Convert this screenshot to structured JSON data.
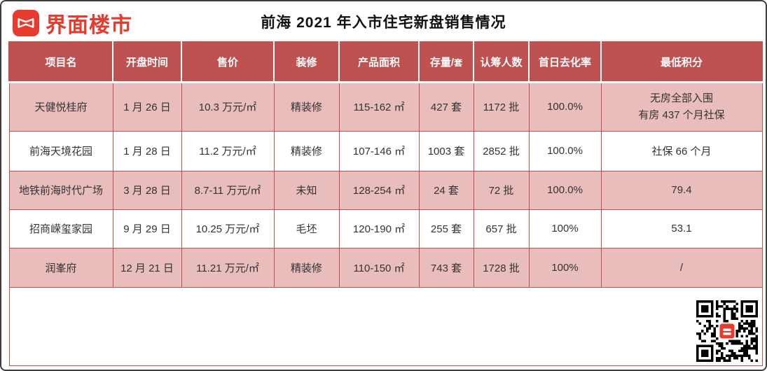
{
  "brand": {
    "name": "界面楼市",
    "logo_color": "#e63c2f"
  },
  "title": "前海 2021 年入市住宅新盘销售情况",
  "colors": {
    "header_bg": "#bf5150",
    "row_pink": "#e8bdbc",
    "grid_red": "#c0504d",
    "brand_red": "#e63c2f"
  },
  "header_stock": {
    "prefix": "存量/",
    "unit": "套"
  },
  "chart_data": {
    "type": "table",
    "title": "前海 2021 年入市住宅新盘销售情况",
    "columns": [
      "项目名",
      "开盘时间",
      "售价",
      "装修",
      "产品面积",
      "存量/套",
      "认筹人数",
      "首日去化率",
      "最低积分"
    ],
    "rows": [
      [
        "天健悦桂府",
        "1 月 26 日",
        "10.3 万元/㎡",
        "精装修",
        "115-162 ㎡",
        "427 套",
        "1172 批",
        "100.0%",
        "无房全部入围\n有房 437 个月社保"
      ],
      [
        "前海天境花园",
        "1 月 28 日",
        "11.2 万元/㎡",
        "精装修",
        "107-146 ㎡",
        "1003 套",
        "2852 批",
        "100.0%",
        "社保 66 个月"
      ],
      [
        "地铁前海时代广场",
        "3 月 28 日",
        "8.7-11 万元/㎡",
        "未知",
        "128-254 ㎡",
        "24 套",
        "72 批",
        "100.0%",
        "79.4"
      ],
      [
        "招商嵘玺家园",
        "9 月 29 日",
        "10.25 万元/㎡",
        "毛坯",
        "120-190 ㎡",
        "255 套",
        "657 批",
        "100%",
        "53.1"
      ],
      [
        "润峯府",
        "12 月 21 日",
        "11.21 万元/㎡",
        "精装修",
        "110-150 ㎡",
        "743 套",
        "1728 批",
        "100%",
        "/"
      ]
    ],
    "row_striping": [
      "pink",
      "white",
      "pink",
      "white",
      "pink"
    ],
    "legend_position": "none",
    "grid": true
  },
  "footer": {
    "qr_icon": "qr-code"
  }
}
